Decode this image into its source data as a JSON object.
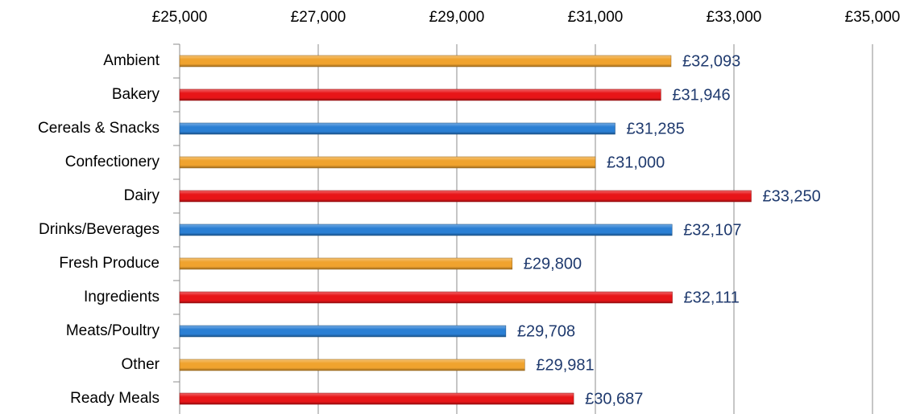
{
  "chart_data": {
    "type": "bar",
    "orientation": "horizontal",
    "categories": [
      "Ambient",
      "Bakery",
      "Cereals & Snacks",
      "Confectionery",
      "Dairy",
      "Drinks/Beverages",
      "Fresh Produce",
      "Ingredients",
      "Meats/Poultry",
      "Other",
      "Ready Meals"
    ],
    "values": [
      32093,
      31946,
      31285,
      31000,
      33250,
      32107,
      29800,
      32111,
      29708,
      29981,
      30687
    ],
    "value_labels": [
      "£32,093",
      "£31,946",
      "£31,285",
      "£31,000",
      "£33,250",
      "£32,107",
      "£29,800",
      "£32,111",
      "£29,708",
      "£29,981",
      "£30,687"
    ],
    "colors": [
      "#f0a32e",
      "#e81518",
      "#2a7fd4",
      "#f0a32e",
      "#e81518",
      "#2a7fd4",
      "#f0a32e",
      "#e81518",
      "#2a7fd4",
      "#f0a32e",
      "#e81518"
    ],
    "xlim": [
      25000,
      35000
    ],
    "xticks": [
      {
        "value": 25000,
        "label": "£25,000"
      },
      {
        "value": 27000,
        "label": "£27,000"
      },
      {
        "value": 29000,
        "label": "£29,000"
      },
      {
        "value": 31000,
        "label": "£31,000"
      },
      {
        "value": 33000,
        "label": "£33,000"
      },
      {
        "value": 35000,
        "label": "£35,000"
      }
    ],
    "grid": true
  }
}
